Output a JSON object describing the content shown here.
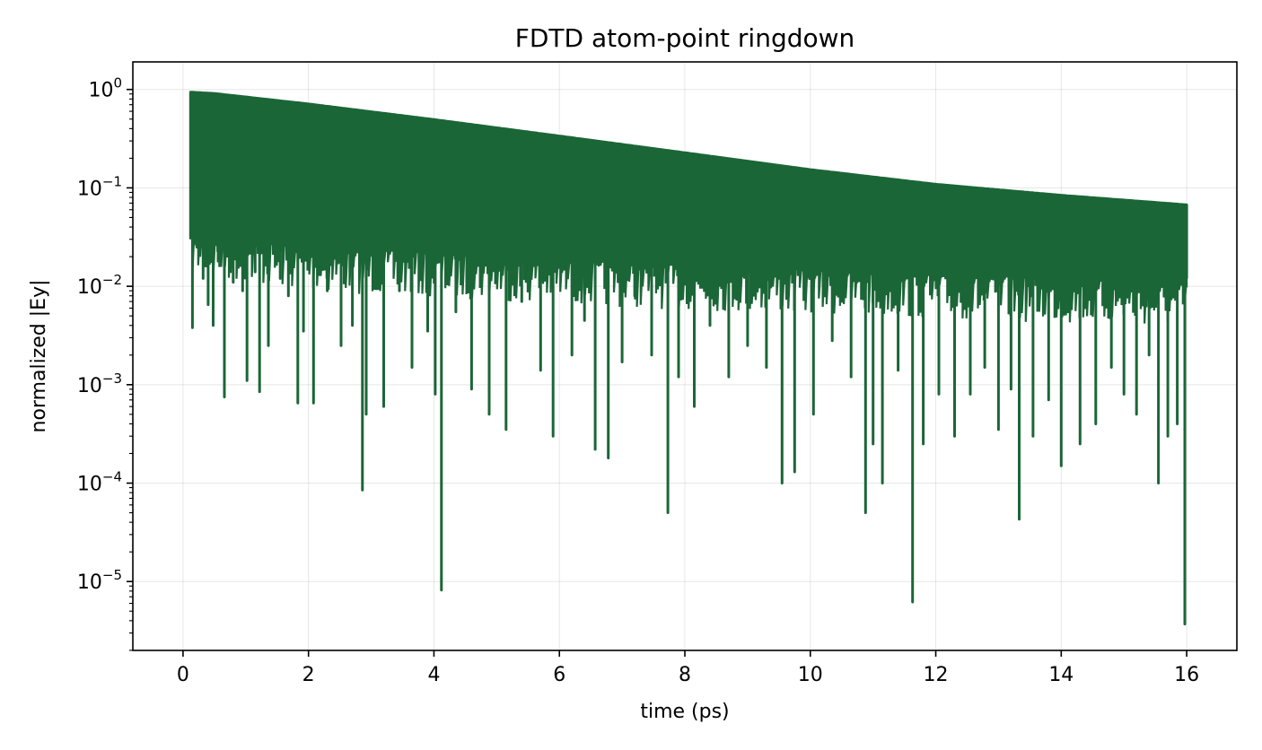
{
  "chart_data": {
    "type": "line",
    "title": "FDTD atom-point ringdown",
    "xlabel": "time (ps)",
    "ylabel": "normalized |Ey|",
    "x_scale": "linear",
    "y_scale": "log",
    "xlim": [
      -0.8,
      16.8
    ],
    "ylim_log10": [
      -5.7,
      0.28
    ],
    "xticks": [
      0,
      2,
      4,
      6,
      8,
      10,
      12,
      14,
      16
    ],
    "xtick_labels": [
      "0",
      "2",
      "4",
      "6",
      "8",
      "10",
      "12",
      "14",
      "16"
    ],
    "yticks": [
      {
        "base": "10",
        "exp": "0",
        "value": 1
      },
      {
        "base": "10",
        "exp": "−1",
        "value": 0.1
      },
      {
        "base": "10",
        "exp": "−2",
        "value": 0.01
      },
      {
        "base": "10",
        "exp": "−3",
        "value": 0.001
      },
      {
        "base": "10",
        "exp": "−4",
        "value": 0.0001
      },
      {
        "base": "10",
        "exp": "−5",
        "value": 1e-05
      }
    ],
    "grid": true,
    "series": [
      {
        "color": "#1b6637",
        "x_start": 0.12,
        "x_end": 16.0,
        "envelope": [
          {
            "x": 0.12,
            "y": 0.95
          },
          {
            "x": 0.5,
            "y": 0.92
          },
          {
            "x": 2.0,
            "y": 0.72
          },
          {
            "x": 4.0,
            "y": 0.5
          },
          {
            "x": 6.0,
            "y": 0.34
          },
          {
            "x": 8.0,
            "y": 0.23
          },
          {
            "x": 10.0,
            "y": 0.155
          },
          {
            "x": 12.0,
            "y": 0.11
          },
          {
            "x": 14.0,
            "y": 0.085
          },
          {
            "x": 16.0,
            "y": 0.068
          }
        ],
        "fill_floor": [
          {
            "x": 0.12,
            "y": 0.04
          },
          {
            "x": 2.0,
            "y": 0.028
          },
          {
            "x": 8.0,
            "y": 0.018
          },
          {
            "x": 16.0,
            "y": 0.012
          }
        ],
        "dips": [
          {
            "x": 0.15,
            "y": 0.0038
          },
          {
            "x": 0.22,
            "y": 0.025
          },
          {
            "x": 0.32,
            "y": 0.012
          },
          {
            "x": 0.4,
            "y": 0.0065
          },
          {
            "x": 0.48,
            "y": 0.004
          },
          {
            "x": 0.56,
            "y": 0.018
          },
          {
            "x": 0.66,
            "y": 0.00075
          },
          {
            "x": 0.8,
            "y": 0.011
          },
          {
            "x": 0.95,
            "y": 0.009
          },
          {
            "x": 1.02,
            "y": 0.0011
          },
          {
            "x": 1.15,
            "y": 0.014
          },
          {
            "x": 1.22,
            "y": 0.00085
          },
          {
            "x": 1.36,
            "y": 0.0025
          },
          {
            "x": 1.55,
            "y": 0.012
          },
          {
            "x": 1.68,
            "y": 0.008
          },
          {
            "x": 1.83,
            "y": 0.00065
          },
          {
            "x": 1.92,
            "y": 0.0035
          },
          {
            "x": 2.08,
            "y": 0.00065
          },
          {
            "x": 2.3,
            "y": 0.009
          },
          {
            "x": 2.52,
            "y": 0.0025
          },
          {
            "x": 2.7,
            "y": 0.004
          },
          {
            "x": 2.86,
            "y": 8.5e-05
          },
          {
            "x": 2.92,
            "y": 0.0005
          },
          {
            "x": 3.2,
            "y": 0.0006
          },
          {
            "x": 3.45,
            "y": 0.009
          },
          {
            "x": 3.65,
            "y": 0.0015
          },
          {
            "x": 3.9,
            "y": 0.0035
          },
          {
            "x": 4.02,
            "y": 0.0008
          },
          {
            "x": 4.12,
            "y": 8.2e-06
          },
          {
            "x": 4.35,
            "y": 0.0055
          },
          {
            "x": 4.6,
            "y": 0.0009
          },
          {
            "x": 4.88,
            "y": 0.0005
          },
          {
            "x": 5.15,
            "y": 0.00035
          },
          {
            "x": 5.4,
            "y": 0.007
          },
          {
            "x": 5.7,
            "y": 0.0014
          },
          {
            "x": 5.9,
            "y": 0.0003
          },
          {
            "x": 6.2,
            "y": 0.002
          },
          {
            "x": 6.4,
            "y": 0.0045
          },
          {
            "x": 6.57,
            "y": 0.00022
          },
          {
            "x": 6.78,
            "y": 0.00018
          },
          {
            "x": 7.0,
            "y": 0.0017
          },
          {
            "x": 7.2,
            "y": 0.008
          },
          {
            "x": 7.47,
            "y": 0.002
          },
          {
            "x": 7.73,
            "y": 5e-05
          },
          {
            "x": 7.9,
            "y": 0.0012
          },
          {
            "x": 8.15,
            "y": 0.0006
          },
          {
            "x": 8.4,
            "y": 0.004
          },
          {
            "x": 8.7,
            "y": 0.0012
          },
          {
            "x": 9.0,
            "y": 0.0025
          },
          {
            "x": 9.3,
            "y": 0.0015
          },
          {
            "x": 9.55,
            "y": 0.0001
          },
          {
            "x": 9.75,
            "y": 0.00013
          },
          {
            "x": 10.05,
            "y": 0.0005
          },
          {
            "x": 10.35,
            "y": 0.0028
          },
          {
            "x": 10.65,
            "y": 0.0012
          },
          {
            "x": 10.88,
            "y": 5e-05
          },
          {
            "x": 11.0,
            "y": 0.00025
          },
          {
            "x": 11.15,
            "y": 0.0001
          },
          {
            "x": 11.4,
            "y": 0.0014
          },
          {
            "x": 11.63,
            "y": 6.2e-06
          },
          {
            "x": 11.8,
            "y": 0.00025
          },
          {
            "x": 12.05,
            "y": 0.0008
          },
          {
            "x": 12.3,
            "y": 0.0003
          },
          {
            "x": 12.55,
            "y": 0.0008
          },
          {
            "x": 12.78,
            "y": 0.0015
          },
          {
            "x": 13.0,
            "y": 0.00035
          },
          {
            "x": 13.2,
            "y": 0.0009
          },
          {
            "x": 13.33,
            "y": 4.3e-05
          },
          {
            "x": 13.55,
            "y": 0.0003
          },
          {
            "x": 13.8,
            "y": 0.0007
          },
          {
            "x": 14.0,
            "y": 0.00015
          },
          {
            "x": 14.3,
            "y": 0.00025
          },
          {
            "x": 14.55,
            "y": 0.0004
          },
          {
            "x": 14.8,
            "y": 0.0015
          },
          {
            "x": 15.0,
            "y": 0.0008
          },
          {
            "x": 15.2,
            "y": 0.0005
          },
          {
            "x": 15.4,
            "y": 0.002
          },
          {
            "x": 15.55,
            "y": 0.0001
          },
          {
            "x": 15.7,
            "y": 0.0003
          },
          {
            "x": 15.85,
            "y": 0.0004
          },
          {
            "x": 15.97,
            "y": 3.7e-06
          }
        ]
      }
    ]
  }
}
